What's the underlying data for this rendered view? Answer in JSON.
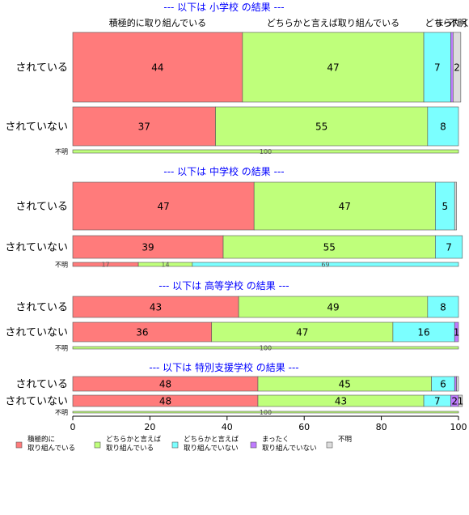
{
  "chart_data": {
    "type": "bar",
    "orientation": "horizontal",
    "stacked": true,
    "xlim": [
      0,
      100
    ],
    "x_ticks": [
      0,
      20,
      40,
      60,
      80,
      100
    ],
    "series": [
      {
        "name": "積極的に取り組んでいる",
        "color": "#ff7b7b"
      },
      {
        "name": "どちらかと言えば取り組んでいる",
        "color": "#bfff7b"
      },
      {
        "name": "どちらかと言えば取り組んでいない",
        "color": "#7bffff"
      },
      {
        "name": "まったく取り組んでいない",
        "color": "#bf7bff"
      },
      {
        "name": "不明",
        "color": "#dcdcdc"
      }
    ],
    "top_segment_labels": [
      "積極的に取り組んでいる",
      "どちらかと言えば取り組んでいる",
      "どちら",
      "まったく",
      "不明"
    ],
    "legend_labels": [
      [
        "積極的に",
        "取り組んでいる"
      ],
      [
        "どちらかと言えば",
        "取り組んでいる"
      ],
      [
        "どちらかと言えば",
        "取り組んでいない"
      ],
      [
        "まったく",
        "取り組んでいない"
      ],
      [
        "不明"
      ]
    ],
    "panels": [
      {
        "title": "--- 以下は 小学校 の結果 ---",
        "rows": [
          {
            "label": "されている",
            "values": [
              44,
              47,
              7,
              0.6,
              2
            ],
            "value_labels": [
              "44",
              "47",
              "7",
              "",
              "2"
            ]
          },
          {
            "label": "されていない",
            "values": [
              37,
              55,
              8,
              0,
              0
            ],
            "value_labels": [
              "37",
              "55",
              "8",
              "",
              ""
            ]
          },
          {
            "label": "不明",
            "values": [
              0,
              100,
              0,
              0,
              0
            ],
            "value_labels": [
              "",
              "100",
              "",
              "",
              ""
            ]
          }
        ]
      },
      {
        "title": "--- 以下は 中学校 の結果 ---",
        "rows": [
          {
            "label": "されている",
            "values": [
              47,
              47,
              5,
              0,
              0.5
            ],
            "value_labels": [
              "47",
              "47",
              "5",
              "",
              ""
            ]
          },
          {
            "label": "されていない",
            "values": [
              39,
              55,
              7,
              0,
              0
            ],
            "value_labels": [
              "39",
              "55",
              "7",
              "",
              ""
            ]
          },
          {
            "label": "不明",
            "values": [
              17,
              14,
              69,
              0,
              0
            ],
            "value_labels": [
              "17",
              "14",
              "69",
              "",
              ""
            ]
          }
        ]
      },
      {
        "title": "--- 以下は 高等学校 の結果 ---",
        "rows": [
          {
            "label": "されている",
            "values": [
              43,
              49,
              8,
              0,
              0
            ],
            "value_labels": [
              "43",
              "49",
              "8",
              "",
              ""
            ]
          },
          {
            "label": "されていない",
            "values": [
              36,
              47,
              16,
              1,
              0
            ],
            "value_labels": [
              "36",
              "47",
              "16",
              "1",
              ""
            ]
          },
          {
            "label": "不明",
            "values": [
              0,
              100,
              0,
              0,
              0
            ],
            "value_labels": [
              "",
              "100",
              "",
              "",
              ""
            ]
          }
        ]
      },
      {
        "title": "--- 以下は 特別支援学校 の結果 ---",
        "rows": [
          {
            "label": "されている",
            "values": [
              48,
              45,
              6,
              0.5,
              0.5
            ],
            "value_labels": [
              "48",
              "45",
              "6",
              "",
              ""
            ]
          },
          {
            "label": "されていない",
            "values": [
              48,
              43,
              7,
              2,
              1
            ],
            "value_labels": [
              "48",
              "43",
              "7",
              "2",
              "1"
            ]
          },
          {
            "label": "不明",
            "values": [
              0,
              100,
              0,
              0,
              0
            ],
            "value_labels": [
              "",
              "100",
              "",
              "",
              ""
            ]
          }
        ]
      }
    ]
  }
}
